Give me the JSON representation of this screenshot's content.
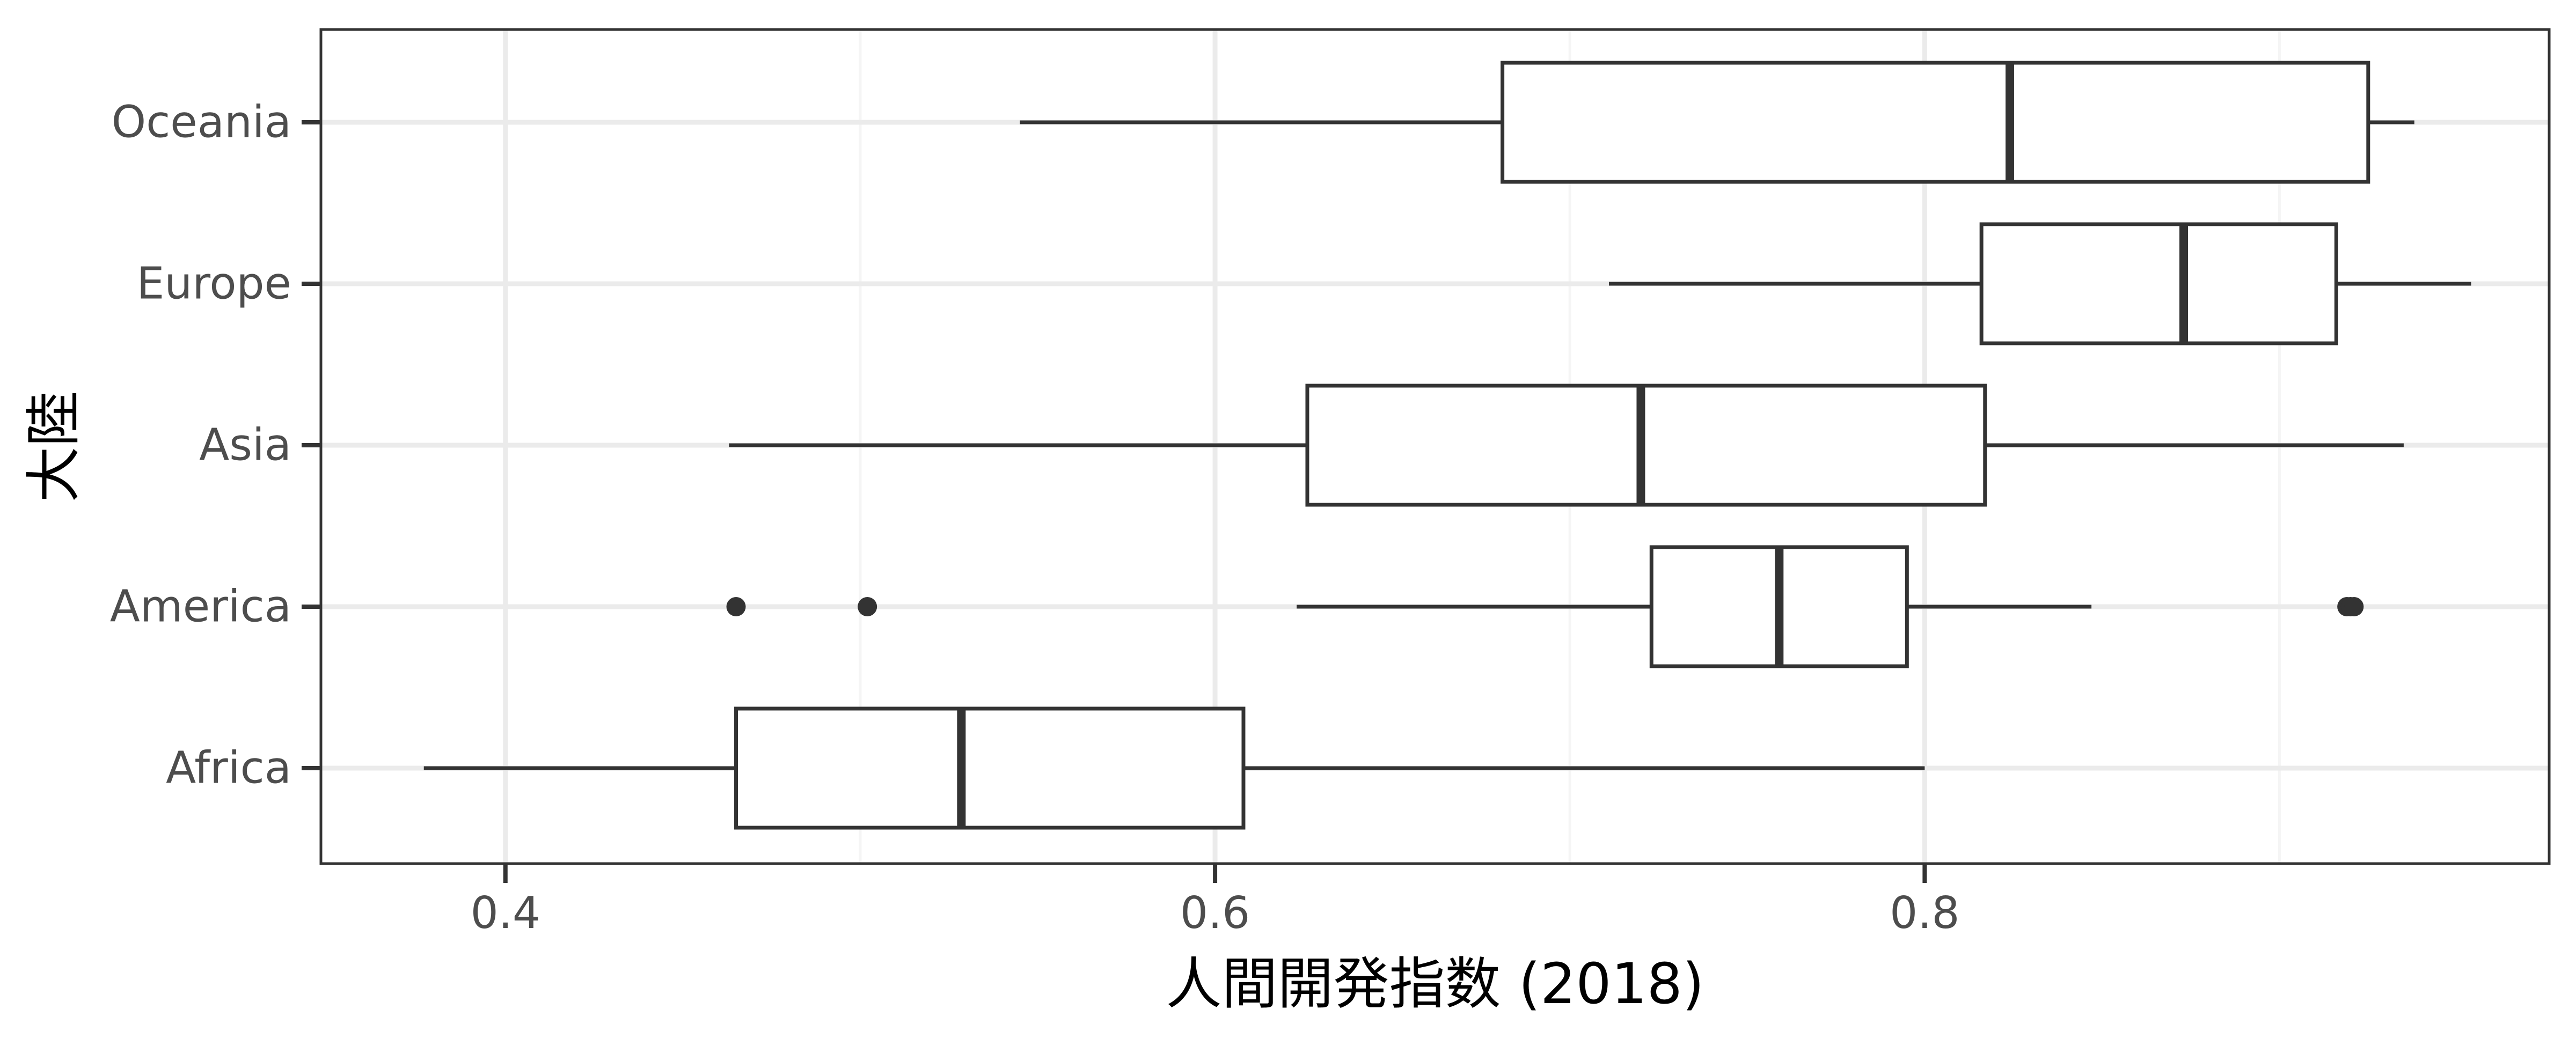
{
  "chart_data": {
    "type": "boxplot",
    "orientation": "horizontal",
    "title": "",
    "xlabel": "人間開発指数 (2018)",
    "ylabel": "大陸",
    "xlim": [
      0.348,
      0.976
    ],
    "x_ticks": [
      0.4,
      0.6,
      0.8
    ],
    "x_tick_labels": [
      "0.4",
      "0.6",
      "0.8"
    ],
    "x_minor_ticks": [
      0.5,
      0.7,
      0.9
    ],
    "grid": true,
    "theme": "bw",
    "categories": [
      "Africa",
      "America",
      "Asia",
      "Europe",
      "Oceania"
    ],
    "series": [
      {
        "category": "Africa",
        "whisker_low": 0.377,
        "q1": 0.465,
        "median": 0.5285,
        "q3": 0.608,
        "whisker_high": 0.8,
        "outliers": []
      },
      {
        "category": "America",
        "whisker_low": 0.623,
        "q1": 0.723,
        "median": 0.759,
        "q3": 0.795,
        "whisker_high": 0.847,
        "outliers": [
          0.465,
          0.502,
          0.919,
          0.92,
          0.921
        ]
      },
      {
        "category": "Asia",
        "whisker_low": 0.463,
        "q1": 0.626,
        "median": 0.72,
        "q3": 0.817,
        "whisker_high": 0.935
      },
      {
        "category": "Europe",
        "whisker_low": 0.711,
        "q1": 0.816,
        "median": 0.873,
        "q3": 0.916,
        "whisker_high": 0.954,
        "outliers": []
      },
      {
        "category": "Oceania",
        "whisker_low": 0.545,
        "q1": 0.681,
        "median": 0.824,
        "q3": 0.925,
        "whisker_high": 0.938,
        "outliers": []
      }
    ],
    "colors": {
      "box_fill": "#ffffff",
      "box_stroke": "#333333",
      "outlier": "#333333",
      "panel_border": "#333333",
      "grid_major": "#ebebeb",
      "grid_minor": "#f5f5f5",
      "tick_label": "#4d4d4d",
      "axis_title": "#000000"
    }
  }
}
